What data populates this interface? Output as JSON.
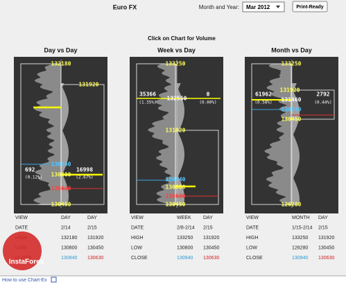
{
  "header": {
    "title": "Euro FX",
    "month_label": "Month and Year:",
    "month_value": "Mar 2012",
    "button": "Print-Ready"
  },
  "instruction": "Click on Chart for Volume",
  "panels": [
    {
      "title": "Day vs Day",
      "labels": [
        "132180",
        "131920",
        "692",
        "(0.12%)",
        "16998",
        "(2.67%)",
        "130940",
        "130800",
        "130630",
        "130450"
      ],
      "table": [
        [
          "VIEW",
          "DAY",
          "DAY"
        ],
        [
          "DATE",
          "2/14",
          "2/15"
        ],
        [
          "HIGH",
          "132180",
          "131920"
        ],
        [
          "LOW",
          "130800",
          "130450"
        ],
        [
          "CLOSE",
          "130940",
          "130630"
        ]
      ]
    },
    {
      "title": "Week vs Day",
      "labels": [
        "133250",
        "35366",
        "(1.35%)",
        "0",
        "(0.00%)",
        "132550",
        "131920",
        "130940",
        "130800",
        "130630",
        "130450"
      ],
      "table": [
        [
          "VIEW",
          "WEEK",
          "DAY"
        ],
        [
          "DATE",
          "2/8-2/14",
          "2/15"
        ],
        [
          "HIGH",
          "133250",
          "131920"
        ],
        [
          "LOW",
          "130800",
          "130450"
        ],
        [
          "CLOSE",
          "130940",
          "130630"
        ]
      ]
    },
    {
      "title": "Month vs Day",
      "labels": [
        "133250",
        "131920",
        "61962",
        "(0.58%)",
        "2792",
        "(0.44%)",
        "131460",
        "130940",
        "130450",
        "126280"
      ],
      "table": [
        [
          "VIEW",
          "MONTH",
          "DAY"
        ],
        [
          "DATE",
          "1/15-2/14",
          "2/15"
        ],
        [
          "HIGH",
          "133250",
          "131920"
        ],
        [
          "LOW",
          "126280",
          "130450"
        ],
        [
          "CLOSE",
          "130940",
          "130630"
        ]
      ]
    }
  ],
  "footer": "How to use Chart-Ex",
  "watermark": "InstaForex"
}
